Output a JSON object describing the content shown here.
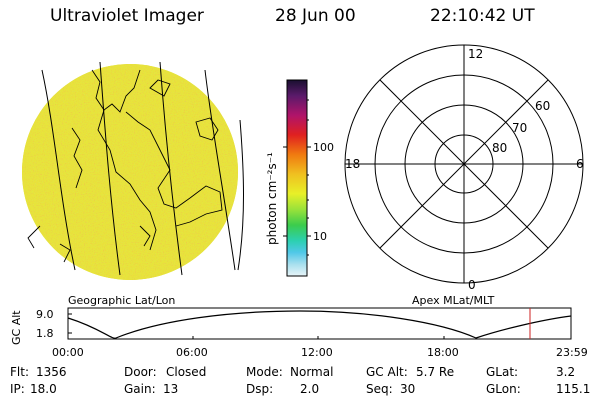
{
  "header": {
    "title": "Ultraviolet Imager",
    "date": "28 Jun 00",
    "time": "22:10:42 UT"
  },
  "image_panel": {
    "caption": "Geographic Lat/Lon"
  },
  "colorbar": {
    "unit_label": "photon cm⁻²s⁻¹",
    "tick_labels": [
      "100",
      "10"
    ],
    "scale": "log"
  },
  "polar_plot": {
    "caption": "Apex MLat/MLT",
    "mlt_labels": {
      "top": "12",
      "left": "18",
      "right": "6",
      "bottom": "0"
    },
    "lat_labels": [
      "60",
      "70",
      "80"
    ]
  },
  "altitude_strip": {
    "ylabel": "GC Alt",
    "y_ticks": [
      "9.0",
      "1.8"
    ],
    "x_ticks": [
      "00:00",
      "06:00",
      "12:00",
      "18:00",
      "23:59"
    ],
    "current_marker_color": "#cc2222"
  },
  "status": {
    "flt_label": "Flt:",
    "flt_value": "1356",
    "ip_label": "IP:",
    "ip_value": "18.0",
    "door_label": "Door:",
    "door_value": "Closed",
    "gain_label": "Gain:",
    "gain_value": "13",
    "mode_label": "Mode:",
    "mode_value": "Normal",
    "dsp_label": "Dsp:",
    "dsp_value": "2.0",
    "gcalt_label": "GC Alt:",
    "gcalt_value": "5.7 Re",
    "seq_label": "Seq:",
    "seq_value": "30",
    "glat_label": "GLat:",
    "glat_value": "3.2",
    "glon_label": "GLon:",
    "glon_value": "115.1"
  }
}
